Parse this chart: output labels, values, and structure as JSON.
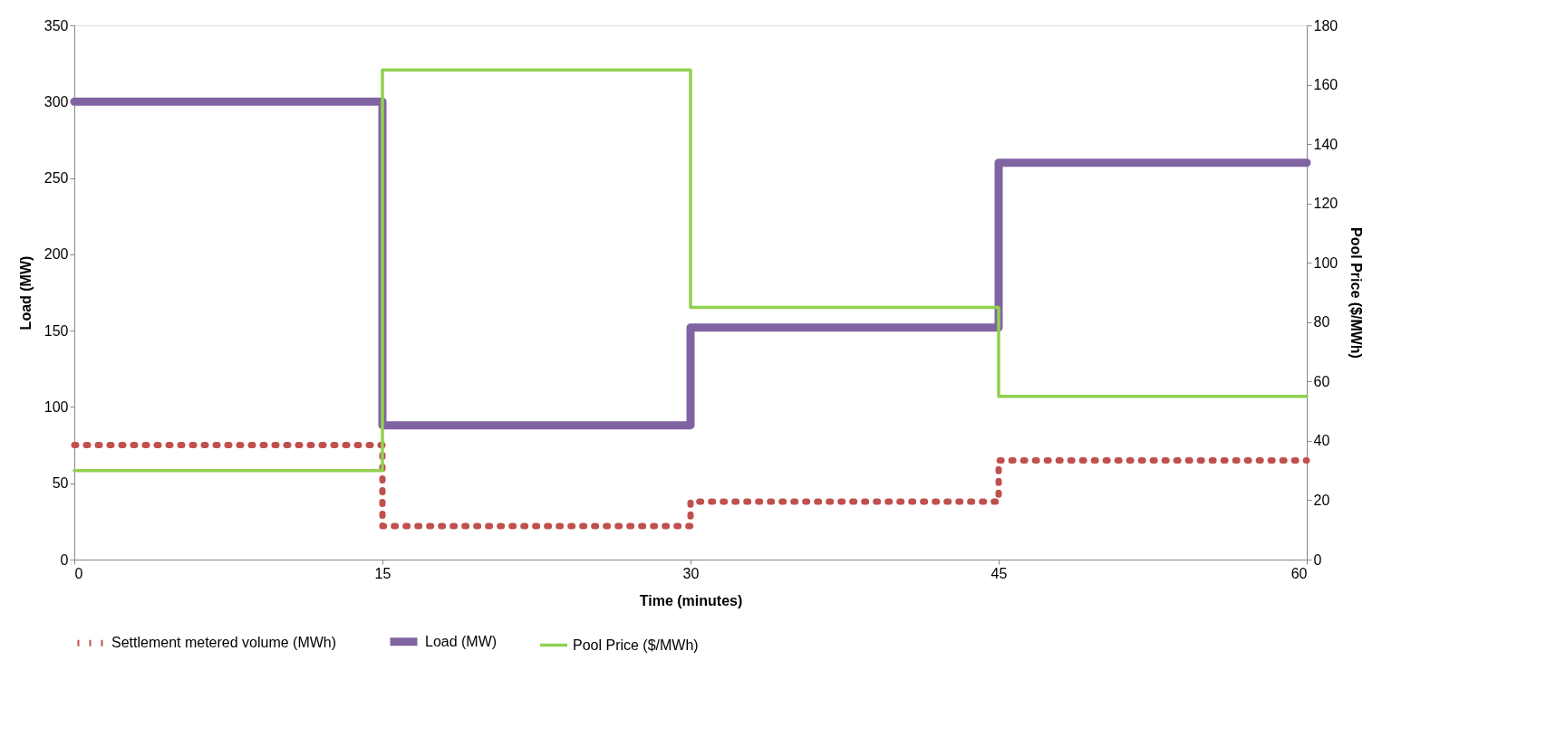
{
  "chart_data": {
    "type": "step",
    "xlabel": "Time (minutes)",
    "ylabel": "Load (MW)",
    "y2label": "Pool Price ($/MWh)",
    "x": [
      0,
      15,
      30,
      45,
      60
    ],
    "series": [
      {
        "name": "Settlement metered volume (MWh)",
        "color": "#c0504d",
        "line_style": "dotted",
        "values": [
          75,
          22,
          38,
          65,
          65
        ]
      },
      {
        "name": "Load (MW)",
        "color": "#8064a2",
        "line_style": "solid",
        "values": [
          300,
          88,
          152,
          260,
          260
        ]
      },
      {
        "name": "Pool Price ($/MWh)",
        "color": "#92d050",
        "line_style": "solid",
        "axis": "y2",
        "values": [
          30,
          165,
          85,
          55,
          55
        ]
      }
    ],
    "xlim": [
      0,
      60
    ],
    "xticks": [
      0,
      15,
      30,
      45,
      60
    ],
    "ylim": [
      0,
      350
    ],
    "yticks": [
      0,
      50,
      100,
      150,
      200,
      250,
      300,
      350
    ],
    "y2lim": [
      0,
      180
    ],
    "y2ticks": [
      0,
      20,
      40,
      60,
      80,
      100,
      120,
      140,
      160,
      180
    ],
    "grid": false,
    "legend": "bottom"
  }
}
